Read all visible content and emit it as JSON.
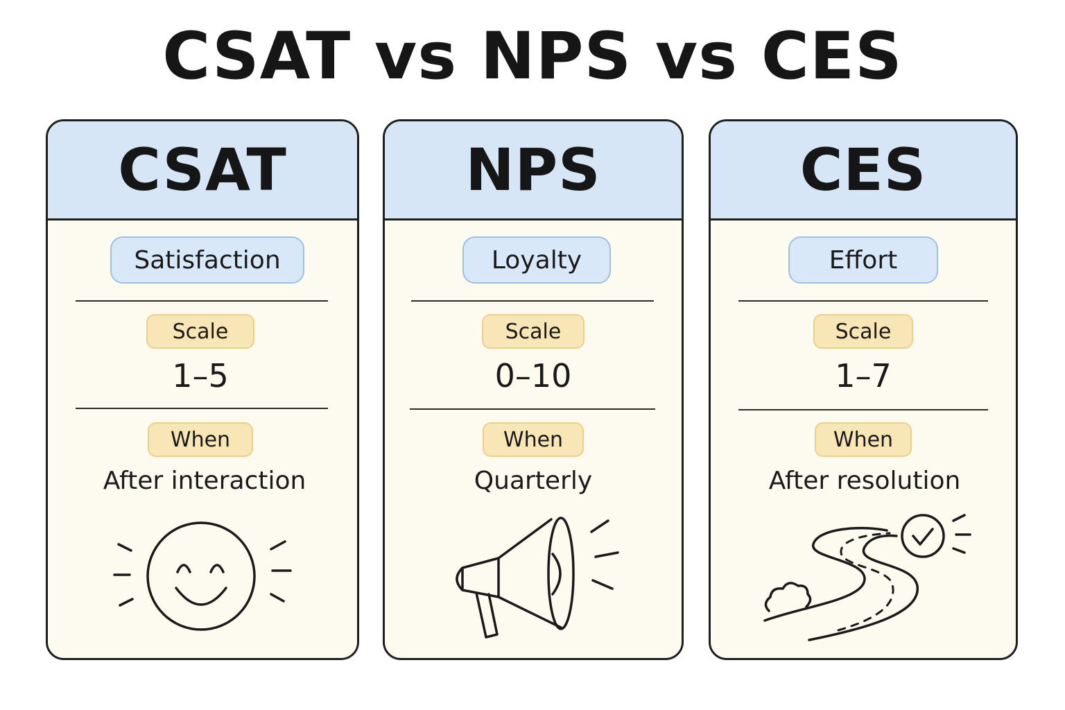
{
  "title": "CSAT vs NPS vs CES",
  "cards": [
    {
      "name": "CSAT",
      "category": "Satisfaction",
      "scale_label": "Scale",
      "scale": "1–5",
      "when_label": "When",
      "when": "After interaction",
      "icon": "smiley-face-icon"
    },
    {
      "name": "NPS",
      "category": "Loyalty",
      "scale_label": "Scale",
      "scale": "0–10",
      "when_label": "When",
      "when": "Quarterly",
      "icon": "megaphone-icon"
    },
    {
      "name": "CES",
      "category": "Effort",
      "scale_label": "Scale",
      "scale": "1–7",
      "when_label": "When",
      "when": "After resolution",
      "icon": "winding-road-checkmark-icon"
    }
  ],
  "colors": {
    "header_blue": "#d6e6f7",
    "card_background": "#fdfaf0",
    "category_pill": "#d9e8f8",
    "label_tag": "#f9e6b6",
    "outline": "#1e1e1e"
  }
}
